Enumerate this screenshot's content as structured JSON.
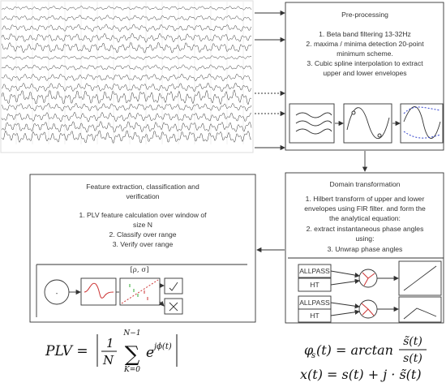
{
  "preprocessing": {
    "title": "Pre-processing",
    "lines": [
      "1. Beta band filtering 13-32Hz",
      "2. maxima / minima detection 20-point",
      "minimum scheme.",
      "3. Cubic spline interpolation to extract",
      "upper and lower envelopes"
    ]
  },
  "domain": {
    "title": "Domain transformation",
    "lines": [
      "1. Hilbert transform of upper and lower",
      "envelopes using FIR filter. and form the",
      "the analytical equation:",
      "2. extract instantaneous phase angles",
      "using:",
      "3. Unwrap phase angles"
    ],
    "blocks": [
      "ALLPASS",
      "HT",
      "ALLPASS",
      "HT"
    ]
  },
  "feature": {
    "title_lines": [
      "Feature extraction, classification and",
      "verification"
    ],
    "lines": [
      "1. PLV feature calculation over window of",
      "size  N",
      "2. Classify over range",
      "3. Verify over range"
    ],
    "minus": "-",
    "params": "[ρ, σ]"
  },
  "formulas": {
    "plv": {
      "lhs": "PLV =",
      "num": "1",
      "den": "N",
      "sum": "∑",
      "top": "N−1",
      "bottom": "K=0",
      "term": "e",
      "exp": "jϕ(t)"
    },
    "phase": {
      "lhs": "φ",
      "sub": "s",
      "mid": "(t) = arctan",
      "num": "s̃(t)",
      "den": "s(t)"
    },
    "analytic": "x(t) = s(t) + j · s̃(t)"
  }
}
